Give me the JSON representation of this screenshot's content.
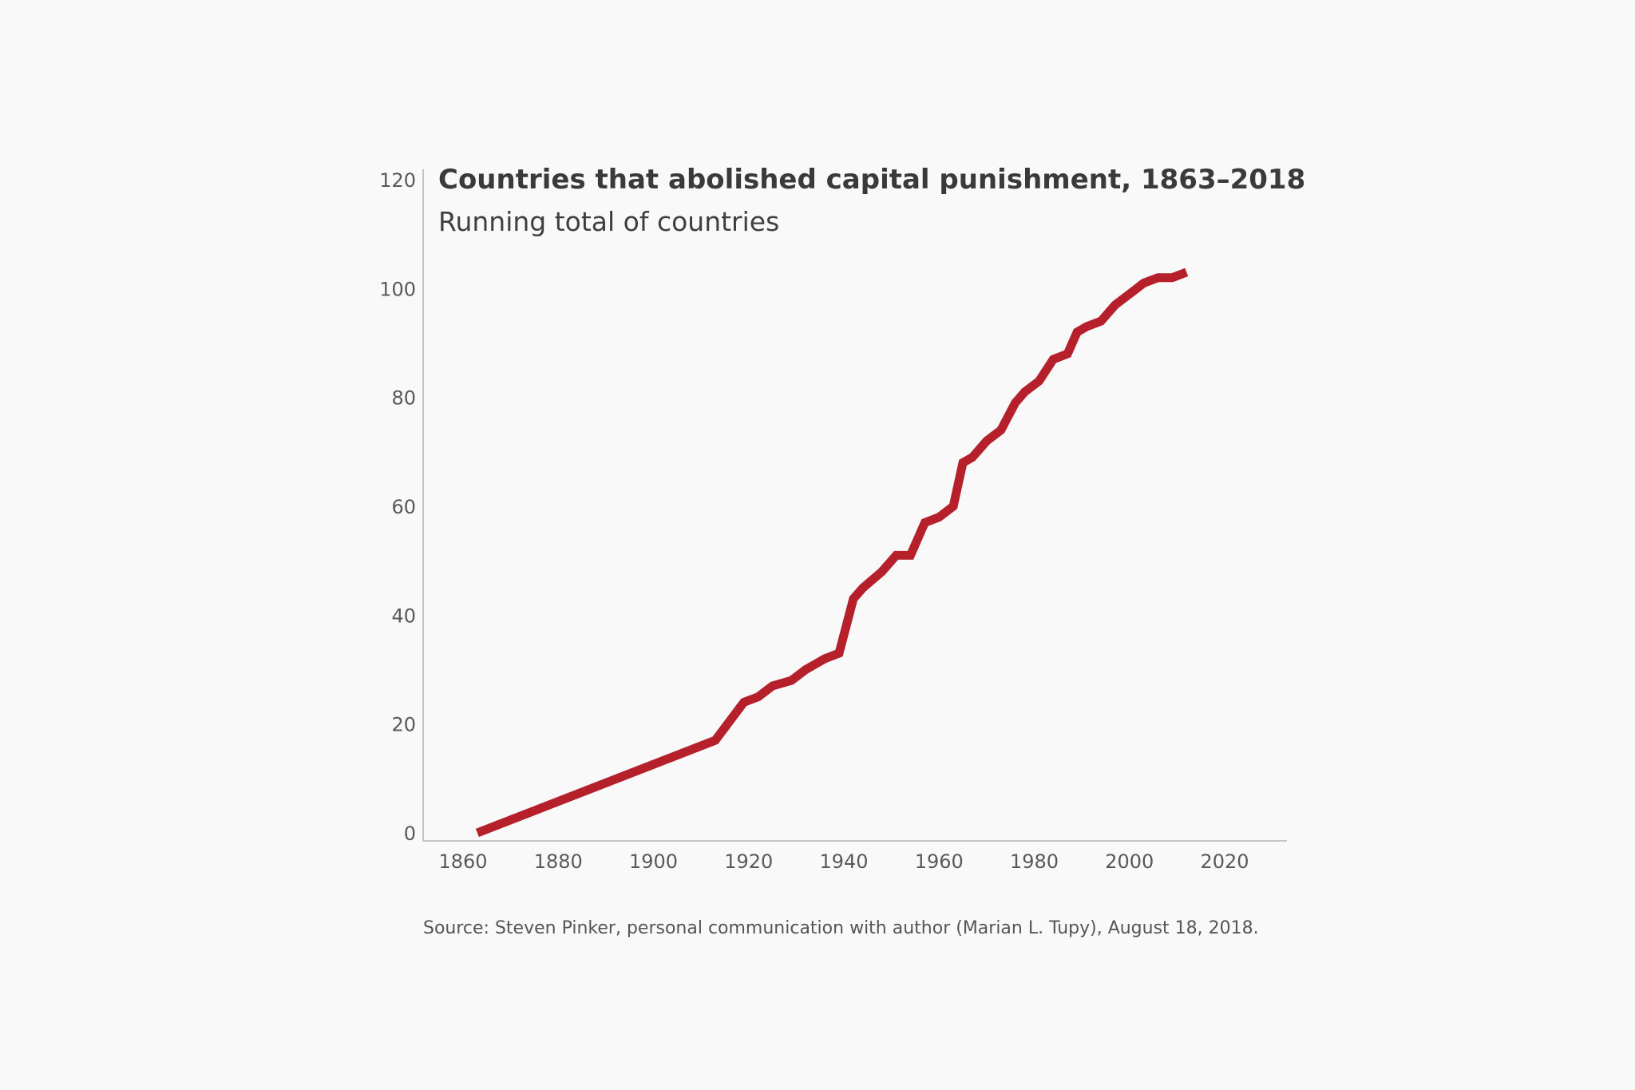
{
  "chart_data": {
    "type": "line",
    "title": "Countries that abolished capital punishment, 1863–2018",
    "subtitle": "Running total of countries",
    "source": "Source: Steven Pinker, personal communication with author (Marian L. Tupy), August 18, 2018.",
    "xlim": [
      1850,
      2032
    ],
    "ylim": [
      0,
      120
    ],
    "x_ticks": [
      1860,
      1880,
      1900,
      1920,
      1940,
      1960,
      1980,
      2000,
      2020
    ],
    "y_ticks": [
      0,
      20,
      40,
      60,
      80,
      100,
      120
    ],
    "grid": false,
    "colors": {
      "line": "#b5202b",
      "axis": "#b3b3b3",
      "background": "#f9f9f9"
    },
    "series": [
      {
        "x": [
          1863,
          1913,
          1919,
          1922,
          1925,
          1929,
          1932,
          1936,
          1939,
          1942,
          1944,
          1948,
          1951,
          1954,
          1957,
          1960,
          1963,
          1965,
          1967,
          1970,
          1973,
          1976,
          1978,
          1981,
          1984,
          1987,
          1989,
          1991,
          1994,
          1997,
          2000,
          2003,
          2006,
          2009,
          2012
        ],
        "y": [
          0,
          17,
          24,
          25,
          27,
          28,
          30,
          32,
          33,
          43,
          45,
          48,
          51,
          51,
          57,
          58,
          60,
          68,
          69,
          72,
          74,
          79,
          81,
          83,
          87,
          88,
          92,
          93,
          94,
          97,
          99,
          101,
          102,
          102,
          103
        ]
      }
    ]
  }
}
